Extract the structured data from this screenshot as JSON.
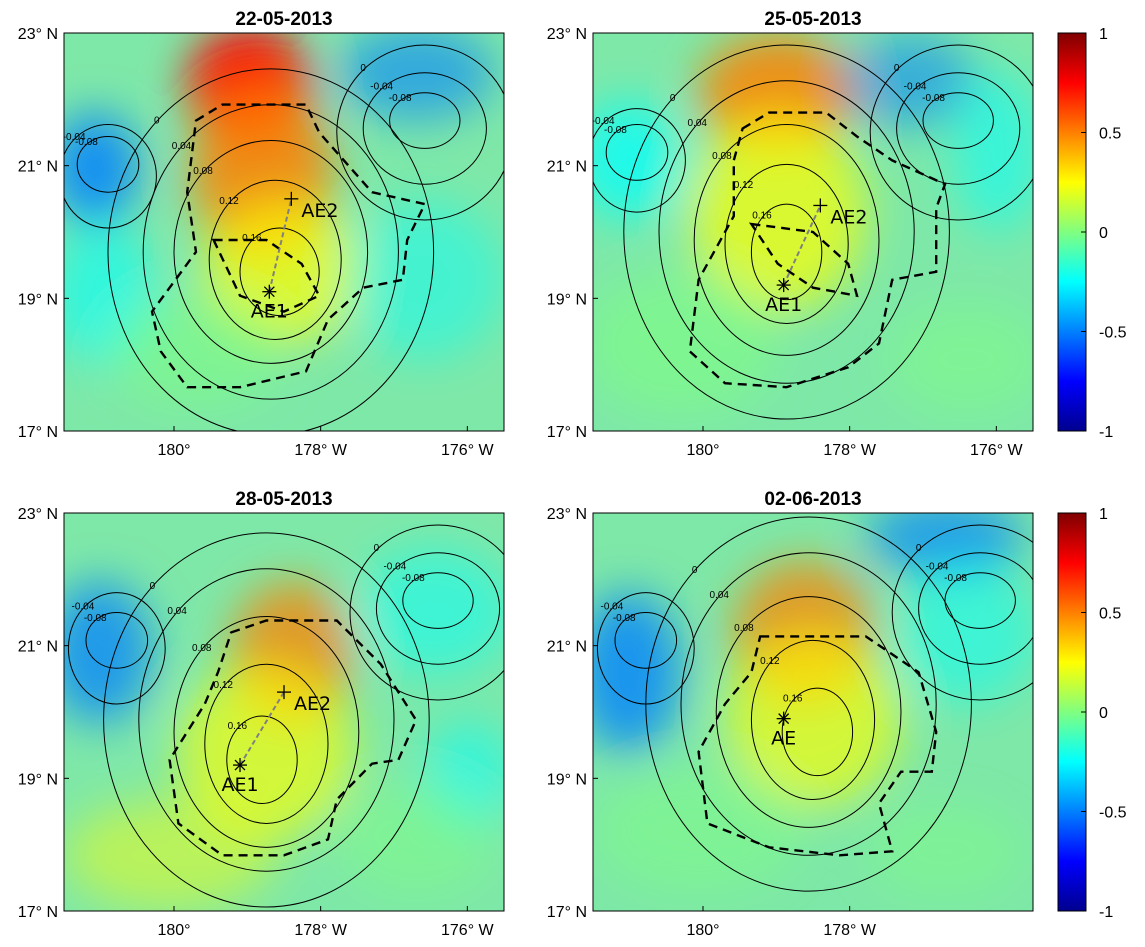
{
  "chart_data": [
    {
      "type": "heatmap",
      "title": "22-05-2013",
      "x_ticks": [
        "180°",
        "178° W",
        "176° W"
      ],
      "y_ticks": [
        "23° N",
        "21° N",
        "19° N",
        "17° N"
      ],
      "contour_labels": [
        "0.04",
        "0.08",
        "0.12",
        "0.16",
        "0",
        "-0.04",
        "-0.08"
      ],
      "markers": [
        {
          "label": "AE1",
          "lon": -178.7,
          "lat": 19.1,
          "symbol": "*"
        },
        {
          "label": "AE2",
          "lon": -178.4,
          "lat": 20.5,
          "symbol": "+"
        }
      ]
    },
    {
      "type": "heatmap",
      "title": "25-05-2013",
      "x_ticks": [
        "180°",
        "178° W",
        "176° W"
      ],
      "y_ticks": [
        "23° N",
        "21° N",
        "19° N",
        "17° N"
      ],
      "contour_labels": [
        "0.04",
        "0.08",
        "0.12",
        "0.16",
        "0",
        "-0.04",
        "-0.08"
      ],
      "markers": [
        {
          "label": "AE1",
          "lon": -178.9,
          "lat": 19.2,
          "symbol": "*"
        },
        {
          "label": "AE2",
          "lon": -178.4,
          "lat": 20.4,
          "symbol": "+"
        }
      ],
      "colorbar": {
        "ticks": [
          "1",
          "0.5",
          "0",
          "-0.5",
          "-1"
        ],
        "range": [
          -1,
          1
        ]
      }
    },
    {
      "type": "heatmap",
      "title": "28-05-2013",
      "x_ticks": [
        "180°",
        "178° W",
        "176° W"
      ],
      "y_ticks": [
        "23° N",
        "21° N",
        "19° N",
        "17° N"
      ],
      "contour_labels": [
        "0.04",
        "0.08",
        "0.12",
        "0.16",
        "0",
        "-0.04",
        "-0.08"
      ],
      "markers": [
        {
          "label": "AE1",
          "lon": -179.1,
          "lat": 19.2,
          "symbol": "*"
        },
        {
          "label": "AE2",
          "lon": -178.5,
          "lat": 20.3,
          "symbol": "+"
        }
      ]
    },
    {
      "type": "heatmap",
      "title": "02-06-2013",
      "x_ticks": [
        "180°",
        "178° W"
      ],
      "y_ticks": [
        "23° N",
        "21° N",
        "19° N",
        "17° N"
      ],
      "contour_labels": [
        "0.04",
        "0.08",
        "0.12",
        "0.16",
        "0",
        "-0.04",
        "-0.08"
      ],
      "markers": [
        {
          "label": "AE",
          "lon": -178.9,
          "lat": 19.9,
          "symbol": "*"
        }
      ],
      "colorbar": {
        "ticks": [
          "1",
          "0.5",
          "0",
          "-0.5",
          "-1"
        ],
        "range": [
          -1,
          1
        ]
      }
    }
  ],
  "colors": {
    "colormap": [
      "#00008f",
      "#0000ff",
      "#0080ff",
      "#00ffff",
      "#80ff80",
      "#ffff00",
      "#ff8000",
      "#ff0000",
      "#800000"
    ],
    "contour": "#000000",
    "track": "#808080"
  }
}
